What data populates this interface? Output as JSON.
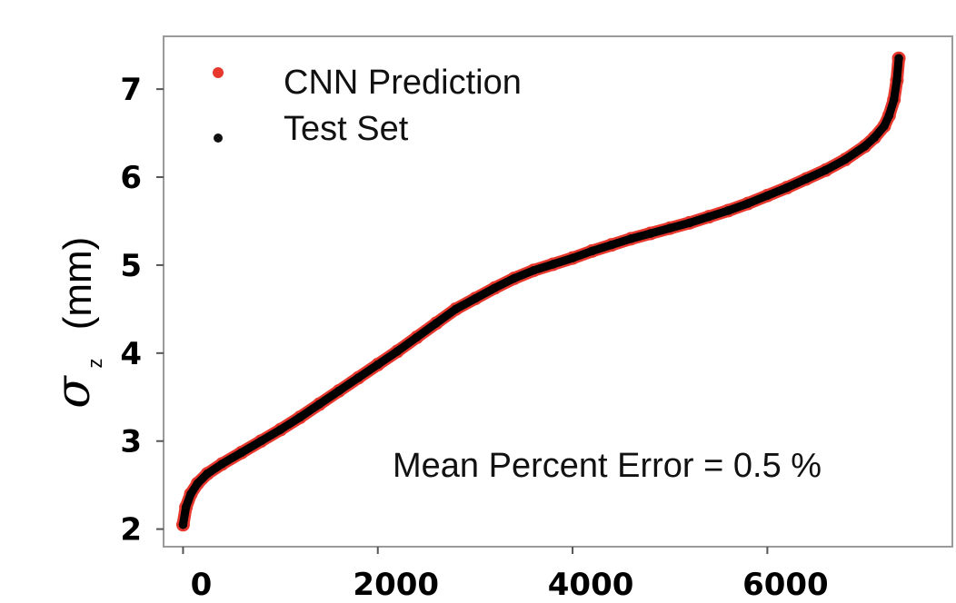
{
  "chart_data": {
    "type": "scatter",
    "xlabel": "",
    "ylabel": {
      "symbol": "σ",
      "subscript": "z",
      "unit": "(mm)"
    },
    "xlim": [
      -200,
      7900
    ],
    "ylim": [
      1.8,
      7.6
    ],
    "xticks": [
      0,
      2000,
      4000,
      6000
    ],
    "xtick_labels": [
      "0",
      "2000",
      "4000",
      "6000"
    ],
    "yticks": [
      2,
      3,
      4,
      5,
      6,
      7
    ],
    "ytick_labels": [
      "2",
      "3",
      "4",
      "5",
      "6",
      "7"
    ],
    "grid": false,
    "legend_placement": "top-left",
    "annotation": "Mean Percent Error = 0.5 %",
    "series": [
      {
        "name": "CNN Prediction",
        "color": "#e8372c",
        "x": [
          0,
          30,
          80,
          150,
          250,
          400,
          600,
          800,
          1000,
          1200,
          1400,
          1600,
          1800,
          2000,
          2200,
          2400,
          2600,
          2800,
          3000,
          3200,
          3400,
          3600,
          3800,
          4000,
          4200,
          4400,
          4600,
          4800,
          5000,
          5200,
          5400,
          5600,
          5800,
          6000,
          6200,
          6400,
          6600,
          6800,
          7000,
          7100,
          7200,
          7250,
          7300,
          7330,
          7350
        ],
        "y": [
          2.05,
          2.25,
          2.4,
          2.52,
          2.63,
          2.74,
          2.87,
          3.0,
          3.13,
          3.27,
          3.42,
          3.57,
          3.72,
          3.87,
          4.02,
          4.18,
          4.34,
          4.5,
          4.62,
          4.74,
          4.85,
          4.94,
          5.01,
          5.08,
          5.16,
          5.23,
          5.3,
          5.36,
          5.42,
          5.48,
          5.55,
          5.62,
          5.7,
          5.79,
          5.88,
          5.98,
          6.08,
          6.2,
          6.35,
          6.45,
          6.58,
          6.7,
          6.88,
          7.1,
          7.35
        ]
      },
      {
        "name": "Test Set",
        "color": "#000000",
        "x": [
          0,
          30,
          80,
          150,
          250,
          400,
          600,
          800,
          1000,
          1200,
          1400,
          1600,
          1800,
          2000,
          2200,
          2400,
          2600,
          2800,
          3000,
          3200,
          3400,
          3600,
          3800,
          4000,
          4200,
          4400,
          4600,
          4800,
          5000,
          5200,
          5400,
          5600,
          5800,
          6000,
          6200,
          6400,
          6600,
          6800,
          7000,
          7100,
          7200,
          7250,
          7300,
          7330,
          7350
        ],
        "y": [
          2.05,
          2.25,
          2.4,
          2.52,
          2.63,
          2.74,
          2.87,
          3.0,
          3.13,
          3.27,
          3.42,
          3.57,
          3.72,
          3.87,
          4.02,
          4.18,
          4.34,
          4.5,
          4.62,
          4.74,
          4.85,
          4.94,
          5.01,
          5.08,
          5.16,
          5.23,
          5.3,
          5.36,
          5.42,
          5.48,
          5.55,
          5.62,
          5.7,
          5.79,
          5.88,
          5.98,
          6.08,
          6.2,
          6.35,
          6.45,
          6.58,
          6.7,
          6.88,
          7.1,
          7.35
        ]
      }
    ]
  }
}
